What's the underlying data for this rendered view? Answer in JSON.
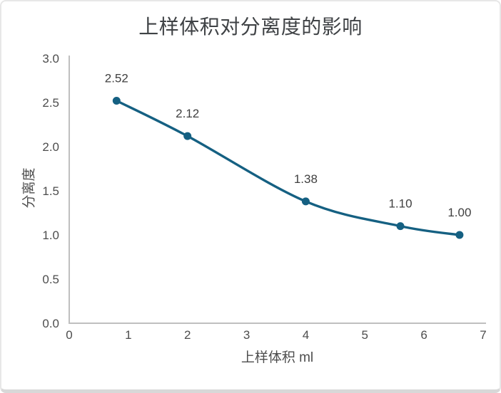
{
  "window": {
    "background": "#ffffff",
    "border_color": "#e7e7e7",
    "border_bottom_color": "#d8d8d8"
  },
  "chart_data": {
    "type": "line",
    "title": "上样体积对分离度的影响",
    "xlabel": "上样体积 ml",
    "ylabel": "分离度",
    "x": [
      0.8,
      2,
      4,
      5.6,
      6.6
    ],
    "y": [
      2.52,
      2.12,
      1.38,
      1.1,
      1.0
    ],
    "point_labels": [
      "2.52",
      "2.12",
      "1.38",
      "1.10",
      "1.00"
    ],
    "xlim": [
      0,
      7
    ],
    "ylim": [
      0,
      3
    ],
    "xticks": [
      0,
      1,
      2,
      3,
      4,
      5,
      6,
      7
    ],
    "xtick_labels": [
      "0",
      "1",
      "2",
      "3",
      "4",
      "5",
      "6",
      "7"
    ],
    "yticks": [
      0,
      0.5,
      1,
      1.5,
      2,
      2.5,
      3
    ],
    "ytick_labels": [
      "0.0",
      "0.5",
      "1.0",
      "1.5",
      "2.0",
      "2.5",
      "3.0"
    ],
    "grid": false,
    "legend": null,
    "line_smooth": true,
    "colors": {
      "line": "#156082",
      "marker": "#156082",
      "title_text": "#3f4245",
      "axis_title_text": "#4d4d4d",
      "tick_text": "#4d4d4d",
      "data_label_text": "#404040",
      "axis_line": "#bfbfbf"
    }
  }
}
